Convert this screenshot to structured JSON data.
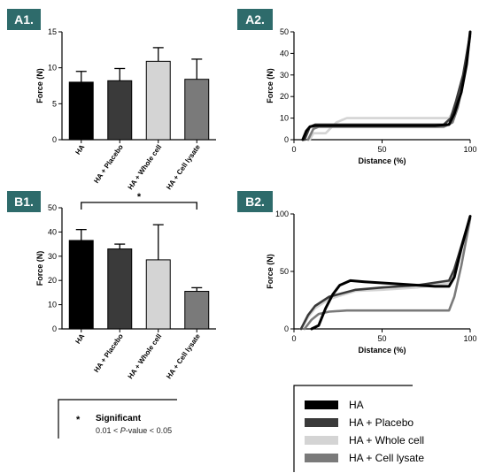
{
  "colors": {
    "tile": "#2e6b6b",
    "HA": "#000000",
    "HA + Placebo": "#3a3a3a",
    "HA + Whole cell": "#d4d4d4",
    "HA + Cell lysate": "#7a7a7a"
  },
  "chart_data": [
    {
      "id": "A1",
      "panel_label": "A1.",
      "type": "bar",
      "ylabel": "Force (N)",
      "ylim": [
        0,
        15
      ],
      "yticks": [
        0,
        5,
        10,
        15
      ],
      "categories": [
        "HA",
        "HA + Placebo",
        "HA + Whole cell",
        "HA + Cell lysate"
      ],
      "values": [
        8.0,
        8.2,
        10.9,
        8.4
      ],
      "errors": [
        1.5,
        1.7,
        1.9,
        2.8
      ]
    },
    {
      "id": "A2",
      "panel_label": "A2.",
      "type": "line",
      "xlabel": "Distance (%)",
      "ylabel": "Force (N)",
      "xlim": [
        0,
        100
      ],
      "ylim": [
        0,
        50
      ],
      "xticks": [
        0,
        50,
        100
      ],
      "yticks": [
        0,
        10,
        20,
        30,
        40,
        50
      ],
      "series": [
        {
          "name": "HA + Whole cell",
          "x": [
            9,
            11,
            13,
            18,
            24,
            27,
            30,
            60,
            88,
            91,
            94,
            97,
            100
          ],
          "y": [
            0,
            3,
            3,
            3,
            8,
            9,
            10,
            10,
            10,
            14,
            20,
            32,
            50
          ]
        },
        {
          "name": "HA + Cell lysate",
          "x": [
            8,
            11,
            14,
            20,
            40,
            60,
            85,
            90,
            93,
            96,
            100
          ],
          "y": [
            0,
            5,
            6,
            6,
            6,
            6,
            6,
            8,
            15,
            27,
            48
          ]
        },
        {
          "name": "HA + Placebo",
          "x": [
            6,
            9,
            12,
            20,
            40,
            60,
            85,
            89,
            92,
            96,
            100
          ],
          "y": [
            0,
            6,
            7,
            7,
            7,
            7,
            7,
            10,
            18,
            30,
            49
          ]
        },
        {
          "name": "HA",
          "x": [
            5,
            7,
            9,
            12,
            20,
            40,
            60,
            80,
            88,
            91,
            95,
            98,
            100
          ],
          "y": [
            0,
            4,
            6,
            6.5,
            6.5,
            6.5,
            6.5,
            6.5,
            7,
            12,
            22,
            35,
            50
          ]
        }
      ]
    },
    {
      "id": "B1",
      "panel_label": "B1.",
      "type": "bar",
      "ylabel": "Force (N)",
      "ylim": [
        0,
        50
      ],
      "yticks": [
        0,
        10,
        20,
        30,
        40,
        50
      ],
      "categories": [
        "HA",
        "HA + Placebo",
        "HA + Whole cell",
        "HA + Cell lysate"
      ],
      "values": [
        36.5,
        33.0,
        28.5,
        15.5
      ],
      "errors": [
        4.5,
        2.0,
        14.5,
        1.5
      ],
      "significance": {
        "from": 0,
        "to": 3,
        "label": "*"
      }
    },
    {
      "id": "B2",
      "panel_label": "B2.",
      "type": "line",
      "xlabel": "Distance (%)",
      "ylabel": "Force (N)",
      "xlim": [
        0,
        100
      ],
      "ylim": [
        0,
        100
      ],
      "xticks": [
        0,
        50,
        100
      ],
      "yticks": [
        0,
        50,
        100
      ],
      "series": [
        {
          "name": "HA + Whole cell",
          "x": [
            4,
            8,
            12,
            20,
            35,
            50,
            70,
            88,
            91,
            95,
            100
          ],
          "y": [
            0,
            10,
            18,
            26,
            33,
            34,
            36,
            40,
            50,
            70,
            98
          ]
        },
        {
          "name": "HA + Cell lysate",
          "x": [
            6,
            10,
            14,
            20,
            30,
            50,
            70,
            88,
            91,
            95,
            100
          ],
          "y": [
            0,
            8,
            13,
            15,
            16,
            16,
            16,
            16,
            28,
            55,
            96
          ]
        },
        {
          "name": "HA + Placebo",
          "x": [
            4,
            8,
            12,
            20,
            35,
            50,
            70,
            88,
            91,
            95,
            100
          ],
          "y": [
            0,
            12,
            20,
            28,
            34,
            36,
            38,
            42,
            52,
            72,
            98
          ]
        },
        {
          "name": "HA",
          "x": [
            10,
            14,
            18,
            22,
            26,
            32,
            40,
            60,
            80,
            88,
            91,
            95,
            100
          ],
          "y": [
            0,
            3,
            18,
            30,
            38,
            42,
            41,
            39,
            37,
            37,
            45,
            70,
            98
          ]
        }
      ]
    }
  ],
  "legend": {
    "items": [
      "HA",
      "HA + Placebo",
      "HA + Whole cell",
      "HA + Cell lysate"
    ]
  },
  "significance_key": {
    "star": "*",
    "title": "Significant",
    "range_left": "0.01 < ",
    "range_italic": "P",
    "range_right": "-value < 0.05"
  }
}
